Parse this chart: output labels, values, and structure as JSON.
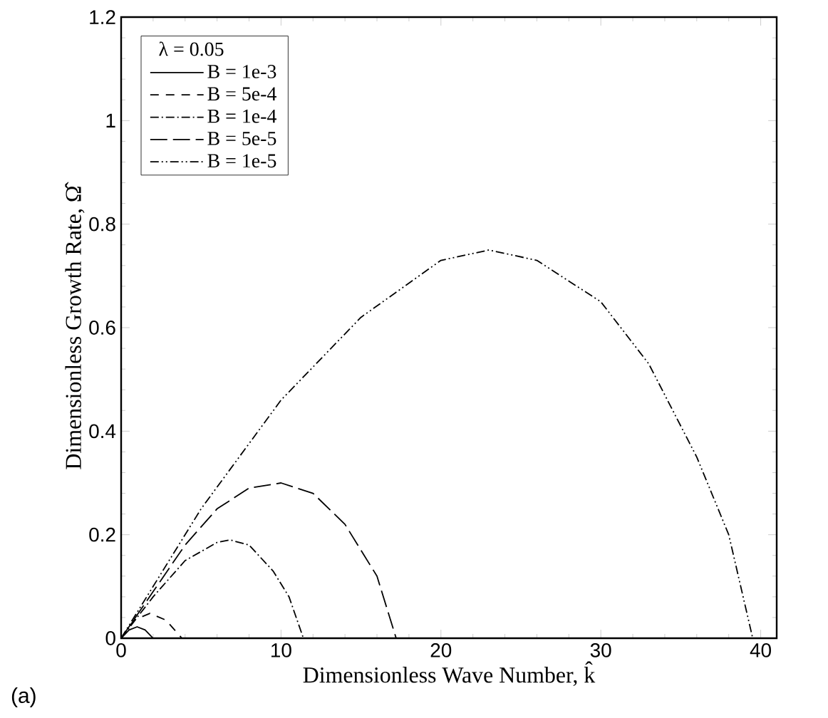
{
  "chart_data": {
    "type": "line",
    "xlabel": "Dimensionless Wave Number, k̂",
    "ylabel": "Dimensionless Growth Rate, Ω̂",
    "legend_title": "λ  = 0.05",
    "legend": "top left",
    "xlim": [
      0,
      41
    ],
    "ylim": [
      0,
      1.2
    ],
    "xticks": [
      0,
      10,
      20,
      30,
      40
    ],
    "yticks": [
      0,
      0.2,
      0.4,
      0.6,
      0.8,
      1,
      1.2
    ],
    "grid": false,
    "annotations": [
      "(a)"
    ],
    "series": [
      {
        "name": "B = 1e-3",
        "color": "#000000",
        "line_style": "solid",
        "x": [
          0,
          0.5,
          1,
          1.5,
          2
        ],
        "values": [
          0,
          0.016,
          0.022,
          0.016,
          0
        ]
      },
      {
        "name": "B = 5e-4",
        "color": "#000000",
        "line_style": "dashed",
        "x": [
          0,
          0.8,
          1.8,
          2.8,
          3.8
        ],
        "values": [
          0,
          0.035,
          0.048,
          0.035,
          0
        ]
      },
      {
        "name": "B = 1e-4",
        "color": "#000000",
        "line_style": "dashdot",
        "x": [
          0,
          2,
          4,
          6,
          6.8,
          8,
          9.5,
          10.5,
          11.4
        ],
        "values": [
          0,
          0.08,
          0.15,
          0.185,
          0.19,
          0.18,
          0.13,
          0.08,
          0
        ]
      },
      {
        "name": "B = 5e-5",
        "color": "#000000",
        "line_style": "longdash",
        "x": [
          0,
          2,
          4,
          6,
          8,
          10,
          12,
          14,
          16,
          17.2
        ],
        "values": [
          0,
          0.09,
          0.18,
          0.25,
          0.29,
          0.3,
          0.28,
          0.22,
          0.12,
          0
        ]
      },
      {
        "name": "B = 1e-5",
        "color": "#000000",
        "line_style": "dashdotdot",
        "x": [
          0,
          2,
          5,
          10,
          15,
          20,
          23,
          26,
          30,
          33,
          36,
          38,
          39.5
        ],
        "values": [
          0,
          0.1,
          0.25,
          0.46,
          0.62,
          0.73,
          0.75,
          0.73,
          0.65,
          0.53,
          0.35,
          0.2,
          0
        ]
      }
    ]
  }
}
